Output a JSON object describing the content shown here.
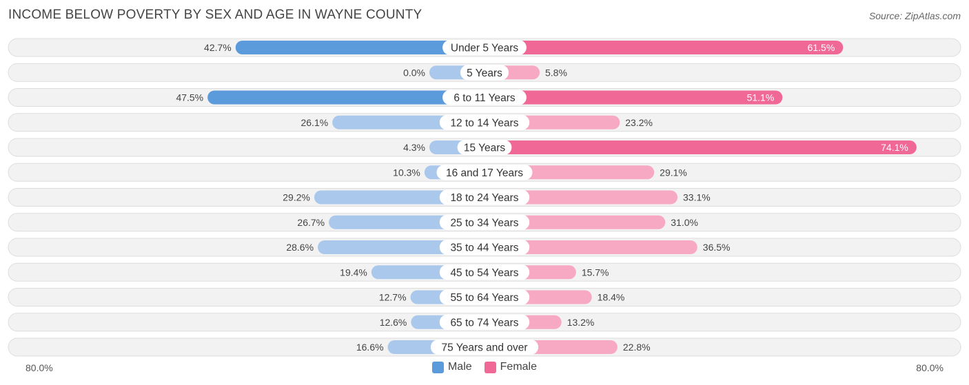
{
  "title": "INCOME BELOW POVERTY BY SEX AND AGE IN WAYNE COUNTY",
  "source": "Source: ZipAtlas.com",
  "colors": {
    "male_strong": "#5b9bdc",
    "male_light": "#a9c8ec",
    "female_strong": "#f06895",
    "female_light": "#f7a8c3",
    "row_bg": "#f2f2f2",
    "row_border": "#dddddd"
  },
  "chart_data": {
    "type": "bar",
    "orientation": "horizontal-diverging",
    "axis_max": 80.0,
    "axis_left_label": "80.0%",
    "axis_right_label": "80.0%",
    "categories": [
      "Under 5 Years",
      "5 Years",
      "6 to 11 Years",
      "12 to 14 Years",
      "15 Years",
      "16 and 17 Years",
      "18 to 24 Years",
      "25 to 34 Years",
      "35 to 44 Years",
      "45 to 54 Years",
      "55 to 64 Years",
      "65 to 74 Years",
      "75 Years and over"
    ],
    "series": [
      {
        "name": "Male",
        "values": [
          42.7,
          0.0,
          47.5,
          26.1,
          4.3,
          10.3,
          29.2,
          26.7,
          28.6,
          19.4,
          12.7,
          12.6,
          16.6
        ],
        "labels": [
          "42.7%",
          "0.0%",
          "47.5%",
          "26.1%",
          "4.3%",
          "10.3%",
          "29.2%",
          "26.7%",
          "28.6%",
          "19.4%",
          "12.7%",
          "12.6%",
          "16.6%"
        ]
      },
      {
        "name": "Female",
        "values": [
          61.5,
          5.8,
          51.1,
          23.2,
          74.1,
          29.1,
          33.1,
          31.0,
          36.5,
          15.7,
          18.4,
          13.2,
          22.8
        ],
        "labels": [
          "61.5%",
          "5.8%",
          "51.1%",
          "23.2%",
          "74.1%",
          "29.1%",
          "33.1%",
          "31.0%",
          "36.5%",
          "15.7%",
          "18.4%",
          "13.2%",
          "22.8%"
        ]
      }
    ],
    "legend": [
      "Male",
      "Female"
    ]
  }
}
